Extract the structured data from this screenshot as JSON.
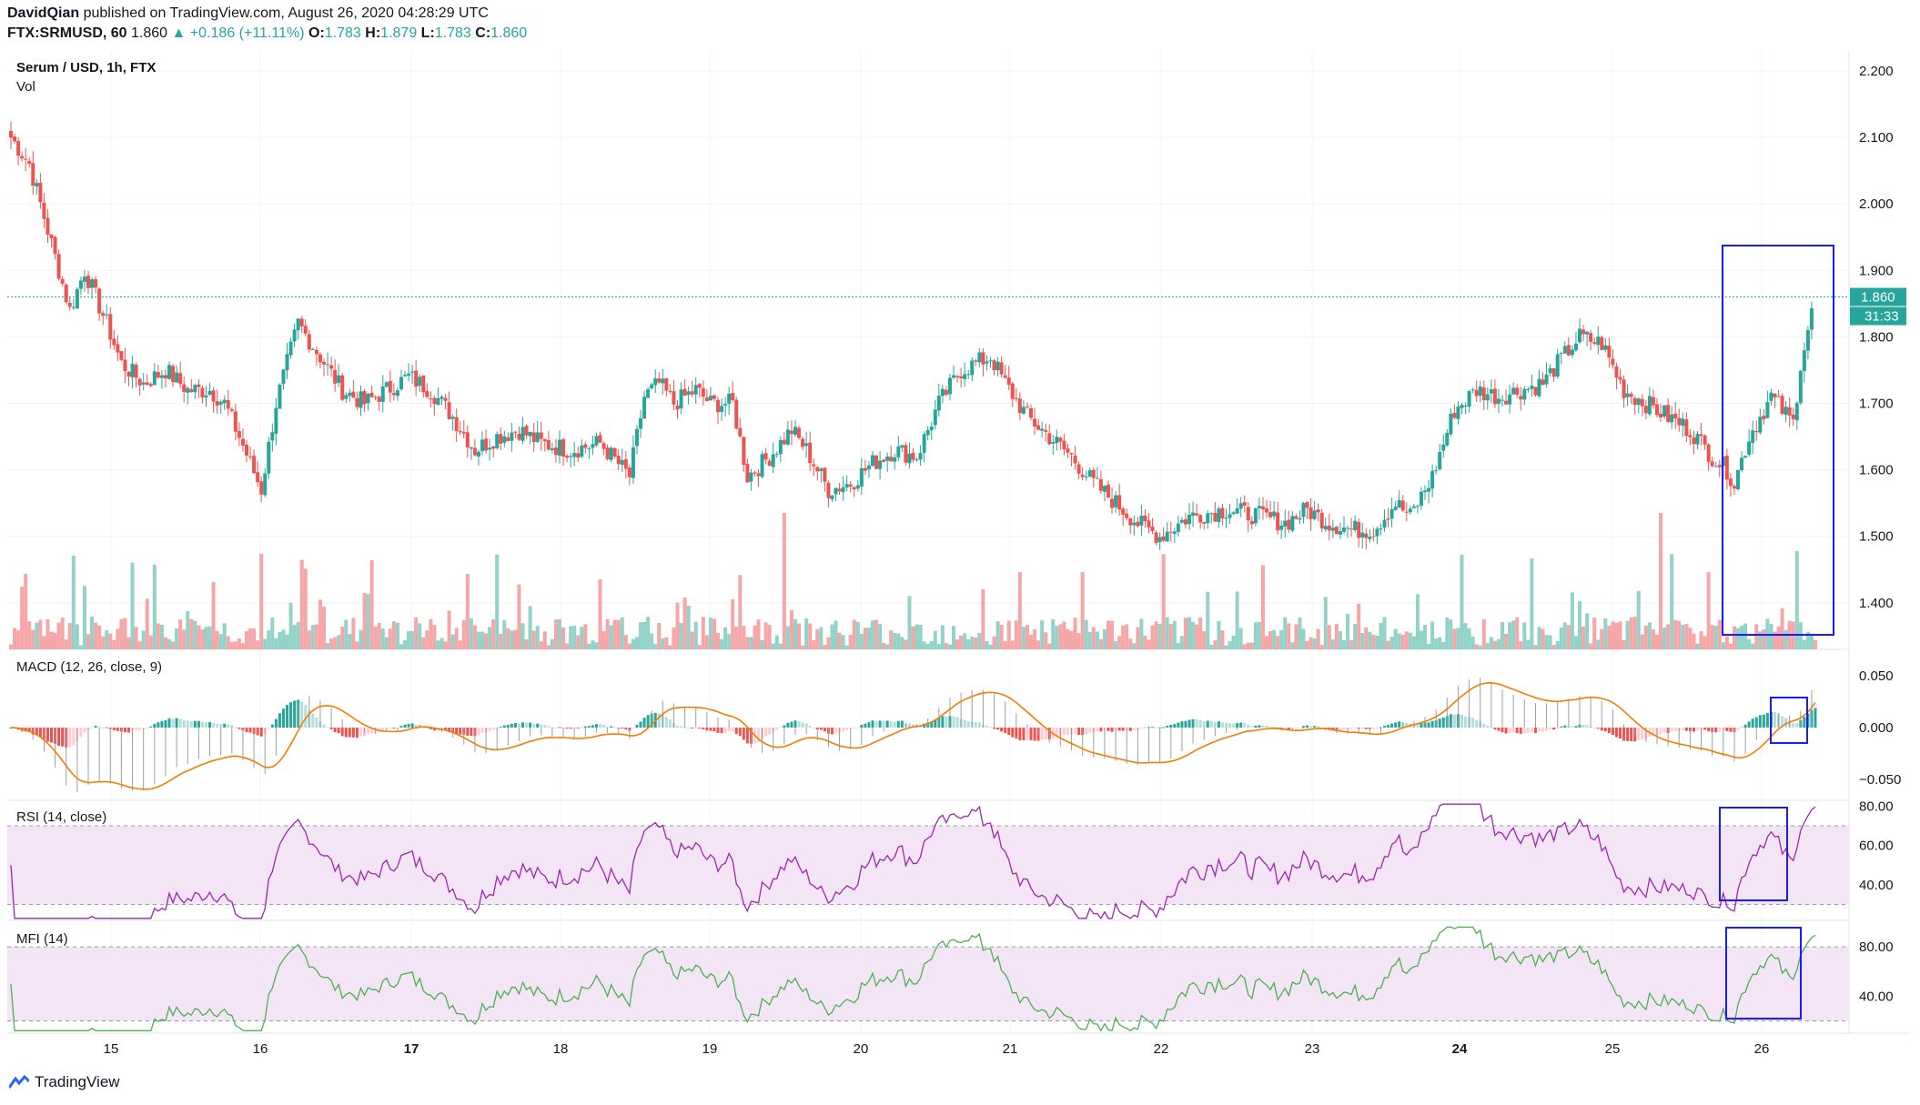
{
  "header": {
    "author": "DavidQian",
    "published_text": "published on TradingView.com, August 26, 2020 04:28:29 UTC",
    "symbol": "FTX:SRMUSD, 60",
    "last": "1.860",
    "change": "+0.186 (+11.11%)",
    "o_label": "O:",
    "o": "1.783",
    "h_label": "H:",
    "h": "1.879",
    "l_label": "L:",
    "l": "1.783",
    "c_label": "C:",
    "c": "1.860"
  },
  "legend": {
    "main_title": "Serum / USD, 1h, FTX",
    "vol": "Vol",
    "macd": "MACD (12, 26, close, 9)",
    "rsi": "RSI (14, close)",
    "mfi": "MFI (14)"
  },
  "price_badge": "1.860",
  "countdown_badge": "31:33",
  "footer": {
    "brand": "TradingView"
  },
  "colors": {
    "up": "#26a69a",
    "down": "#ef5350",
    "vol_up": "#93d2c9",
    "vol_down": "#f5a6a6",
    "macd_signal": "#f57c00",
    "macd_line": "#9e9e9e",
    "rsi": "#9c27b0",
    "mfi": "#4caf50",
    "band": "#f3e5f5",
    "highlight": "#1a1aff"
  },
  "chart_data": [
    {
      "type": "candlestick",
      "title": "Serum / USD, 1h, FTX",
      "y_ticks": [
        "2.200",
        "2.100",
        "2.000",
        "1.900",
        "1.800",
        "1.700",
        "1.600",
        "1.500",
        "1.400"
      ],
      "ylim": [
        1.33,
        2.23
      ],
      "x_tick_labels": [
        "15",
        "16",
        "17",
        "18",
        "19",
        "20",
        "21",
        "22",
        "23",
        "24",
        "25",
        "26"
      ],
      "x_tick_bold": [
        "17",
        "24"
      ],
      "close_anchors": [
        [
          0,
          2.1
        ],
        [
          5,
          2.06
        ],
        [
          10,
          1.96
        ],
        [
          16,
          1.84
        ],
        [
          20,
          1.9
        ],
        [
          26,
          1.82
        ],
        [
          30,
          1.76
        ],
        [
          36,
          1.73
        ],
        [
          42,
          1.75
        ],
        [
          48,
          1.72
        ],
        [
          54,
          1.72
        ],
        [
          58,
          1.7
        ],
        [
          62,
          1.65
        ],
        [
          68,
          1.57
        ],
        [
          72,
          1.7
        ],
        [
          78,
          1.82
        ],
        [
          84,
          1.77
        ],
        [
          90,
          1.72
        ],
        [
          96,
          1.7
        ],
        [
          102,
          1.72
        ],
        [
          108,
          1.74
        ],
        [
          114,
          1.72
        ],
        [
          120,
          1.68
        ],
        [
          126,
          1.63
        ],
        [
          132,
          1.65
        ],
        [
          138,
          1.66
        ],
        [
          144,
          1.64
        ],
        [
          152,
          1.63
        ],
        [
          160,
          1.64
        ],
        [
          168,
          1.59
        ],
        [
          172,
          1.71
        ],
        [
          176,
          1.73
        ],
        [
          180,
          1.7
        ],
        [
          186,
          1.72
        ],
        [
          190,
          1.7
        ],
        [
          196,
          1.7
        ],
        [
          200,
          1.59
        ],
        [
          206,
          1.62
        ],
        [
          212,
          1.66
        ],
        [
          216,
          1.63
        ],
        [
          222,
          1.57
        ],
        [
          228,
          1.58
        ],
        [
          234,
          1.61
        ],
        [
          240,
          1.63
        ],
        [
          246,
          1.62
        ],
        [
          252,
          1.7
        ],
        [
          258,
          1.75
        ],
        [
          266,
          1.77
        ],
        [
          270,
          1.73
        ],
        [
          276,
          1.68
        ],
        [
          282,
          1.65
        ],
        [
          288,
          1.62
        ],
        [
          294,
          1.58
        ],
        [
          300,
          1.55
        ],
        [
          306,
          1.52
        ],
        [
          312,
          1.5
        ],
        [
          320,
          1.53
        ],
        [
          330,
          1.54
        ],
        [
          340,
          1.53
        ],
        [
          346,
          1.52
        ],
        [
          352,
          1.54
        ],
        [
          358,
          1.52
        ],
        [
          364,
          1.51
        ],
        [
          370,
          1.51
        ],
        [
          376,
          1.55
        ],
        [
          380,
          1.53
        ],
        [
          386,
          1.59
        ],
        [
          392,
          1.69
        ],
        [
          398,
          1.72
        ],
        [
          404,
          1.71
        ],
        [
          410,
          1.72
        ],
        [
          416,
          1.73
        ],
        [
          420,
          1.76
        ],
        [
          426,
          1.8
        ],
        [
          432,
          1.79
        ],
        [
          438,
          1.72
        ],
        [
          444,
          1.7
        ],
        [
          450,
          1.68
        ],
        [
          456,
          1.66
        ],
        [
          462,
          1.62
        ],
        [
          466,
          1.6
        ],
        [
          468,
          1.58
        ],
        [
          472,
          1.65
        ],
        [
          478,
          1.71
        ],
        [
          484,
          1.67
        ],
        [
          486,
          1.76
        ],
        [
          490,
          1.86
        ]
      ],
      "candle_count": 491,
      "current_price": 1.86,
      "last_bar": {
        "open": 1.783,
        "high": 1.879,
        "low": 1.783,
        "close": 1.86
      }
    },
    {
      "type": "bar",
      "title": "Vol",
      "note": "hourly volume bars colored by candle direction"
    },
    {
      "type": "histogram+line",
      "title": "MACD (12, 26, close, 9)",
      "y_ticks": [
        "0.050",
        "0.000",
        "−0.050"
      ],
      "ylim": [
        -0.07,
        0.07
      ]
    },
    {
      "type": "line",
      "title": "RSI (14, close)",
      "y_ticks": [
        "80.00",
        "60.00",
        "40.00"
      ],
      "ylim": [
        22,
        82
      ],
      "band": [
        30,
        70
      ]
    },
    {
      "type": "line",
      "title": "MFI (14)",
      "y_ticks": [
        "80.00",
        "40.00"
      ],
      "ylim": [
        10,
        100
      ],
      "band": [
        20,
        80
      ]
    }
  ]
}
